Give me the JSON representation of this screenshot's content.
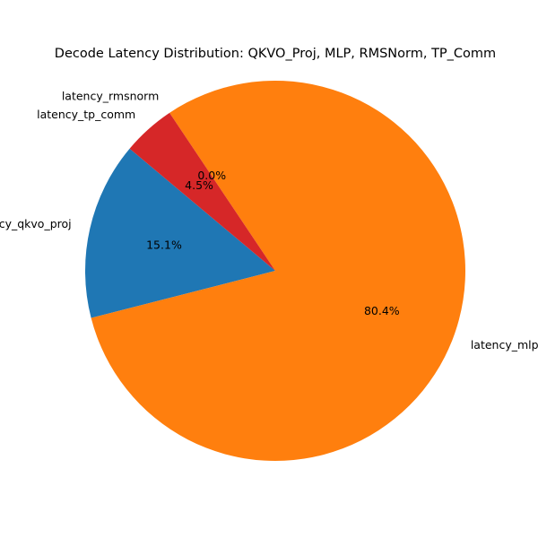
{
  "chart_data": {
    "type": "pie",
    "title": "Decode Latency Distribution: QKVO_Proj, MLP, RMSNorm, TP_Comm",
    "slices": [
      {
        "label": "latency_qkvo_proj",
        "value": 15.1,
        "pct_label": "15.1%",
        "color": "#1f77b4"
      },
      {
        "label": "latency_mlp",
        "value": 80.4,
        "pct_label": "80.4%",
        "color": "#ff7f0e"
      },
      {
        "label": "latency_rmsnorm",
        "value": 0.0,
        "pct_label": "0.0%",
        "color": "#2ca02c"
      },
      {
        "label": "latency_tp_comm",
        "value": 4.5,
        "pct_label": "4.5%",
        "color": "#d62728"
      }
    ],
    "start_angle_deg": 140,
    "direction": "counterclockwise"
  }
}
